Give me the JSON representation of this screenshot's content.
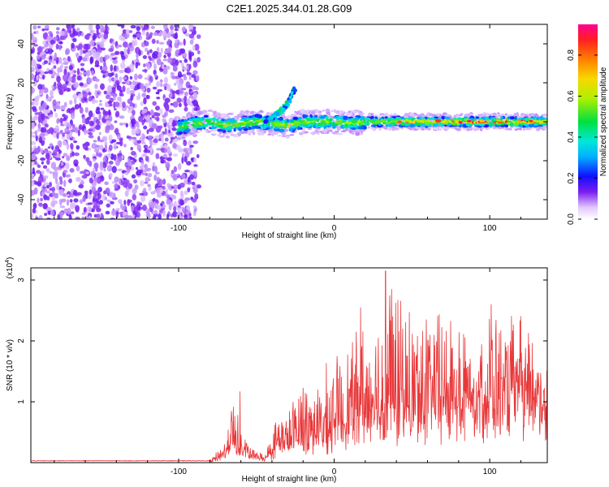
{
  "title": "C2E1.2025.344.01.28.G09",
  "chart_data": [
    {
      "type": "heatmap",
      "name": "spectrogram",
      "xlabel": "Height of straight line (km)",
      "ylabel": "Frequency (Hz)",
      "xlim": [
        -195,
        137
      ],
      "ylim": [
        -50,
        50
      ],
      "xticks": [
        -100,
        0,
        100
      ],
      "xtick_labels": [
        "-100",
        "0",
        "100"
      ],
      "yticks": [
        -40,
        -20,
        0,
        20,
        40
      ],
      "ytick_labels": [
        "-40",
        "-20",
        "0",
        "20",
        "40"
      ],
      "noise_region_x": [
        -195,
        -90
      ],
      "signal_track": {
        "x": [
          -100,
          -90,
          -80,
          -70,
          -60,
          -50,
          -40,
          -30,
          -20,
          -10,
          0,
          10,
          20,
          40,
          60,
          80,
          100,
          120,
          137
        ],
        "freq": [
          -3,
          -1,
          0,
          -2,
          -1,
          0,
          -1,
          -2,
          0,
          0,
          0,
          -1,
          0,
          0,
          0,
          0,
          0,
          0,
          0
        ]
      },
      "spur_track": {
        "x": [
          -45,
          -40,
          -35,
          -30,
          -25
        ],
        "freq": [
          -2,
          2,
          5,
          9,
          17
        ]
      },
      "colorbar": {
        "label": "Normalized spectral amplitude",
        "range": [
          0.0,
          0.95
        ],
        "ticks": [
          0.0,
          0.2,
          0.4,
          0.6,
          0.8
        ],
        "tick_labels": [
          "0.0",
          "0.2",
          "0.4",
          "0.6",
          "0.8"
        ]
      }
    },
    {
      "type": "line",
      "name": "snr",
      "xlabel": "Height of straight line (km)",
      "ylabel": "SNR (10 * v/v)",
      "multiplier_label": "(x10",
      "multiplier_exp": "4",
      "multiplier_close": ")",
      "xlim": [
        -195,
        137
      ],
      "ylim": [
        0,
        3.2
      ],
      "xticks": [
        -100,
        0,
        100
      ],
      "xtick_labels": [
        "-100",
        "0",
        "100"
      ],
      "yticks": [
        1,
        2,
        3
      ],
      "ytick_labels": [
        "1",
        "2",
        "3"
      ],
      "line_color": "#e8383a",
      "envelope": {
        "x": [
          -195,
          -80,
          -75,
          -70,
          -65,
          -60,
          -55,
          -50,
          -45,
          -40,
          -35,
          -30,
          -20,
          -15,
          -10,
          -5,
          0,
          10,
          20,
          30,
          35,
          40,
          50,
          60,
          70,
          80,
          90,
          100,
          110,
          120,
          137
        ],
        "base": [
          0.03,
          0.03,
          0.05,
          0.15,
          0.3,
          0.2,
          0.12,
          0.08,
          0.05,
          0.15,
          0.3,
          0.25,
          0.4,
          0.45,
          0.3,
          0.4,
          0.55,
          0.6,
          0.7,
          0.75,
          0.8,
          0.75,
          0.8,
          0.9,
          0.95,
          0.95,
          0.9,
          0.95,
          1.0,
          1.0,
          1.0
        ],
        "peak": [
          0.03,
          0.04,
          0.2,
          0.4,
          1.15,
          0.6,
          0.3,
          0.2,
          0.15,
          0.5,
          0.95,
          0.8,
          1.55,
          1.35,
          1.25,
          1.6,
          1.7,
          2.0,
          2.4,
          2.6,
          3.15,
          2.8,
          2.5,
          2.6,
          2.5,
          2.5,
          2.2,
          2.6,
          2.3,
          2.4,
          2.0
        ]
      },
      "spikes": [
        {
          "x": -60.5,
          "y": 1.17
        },
        {
          "x": 33,
          "y": 3.15
        },
        {
          "x": 37,
          "y": 2.85
        },
        {
          "x": 17,
          "y": 2.55
        },
        {
          "x": 101,
          "y": 2.6
        }
      ]
    }
  ]
}
